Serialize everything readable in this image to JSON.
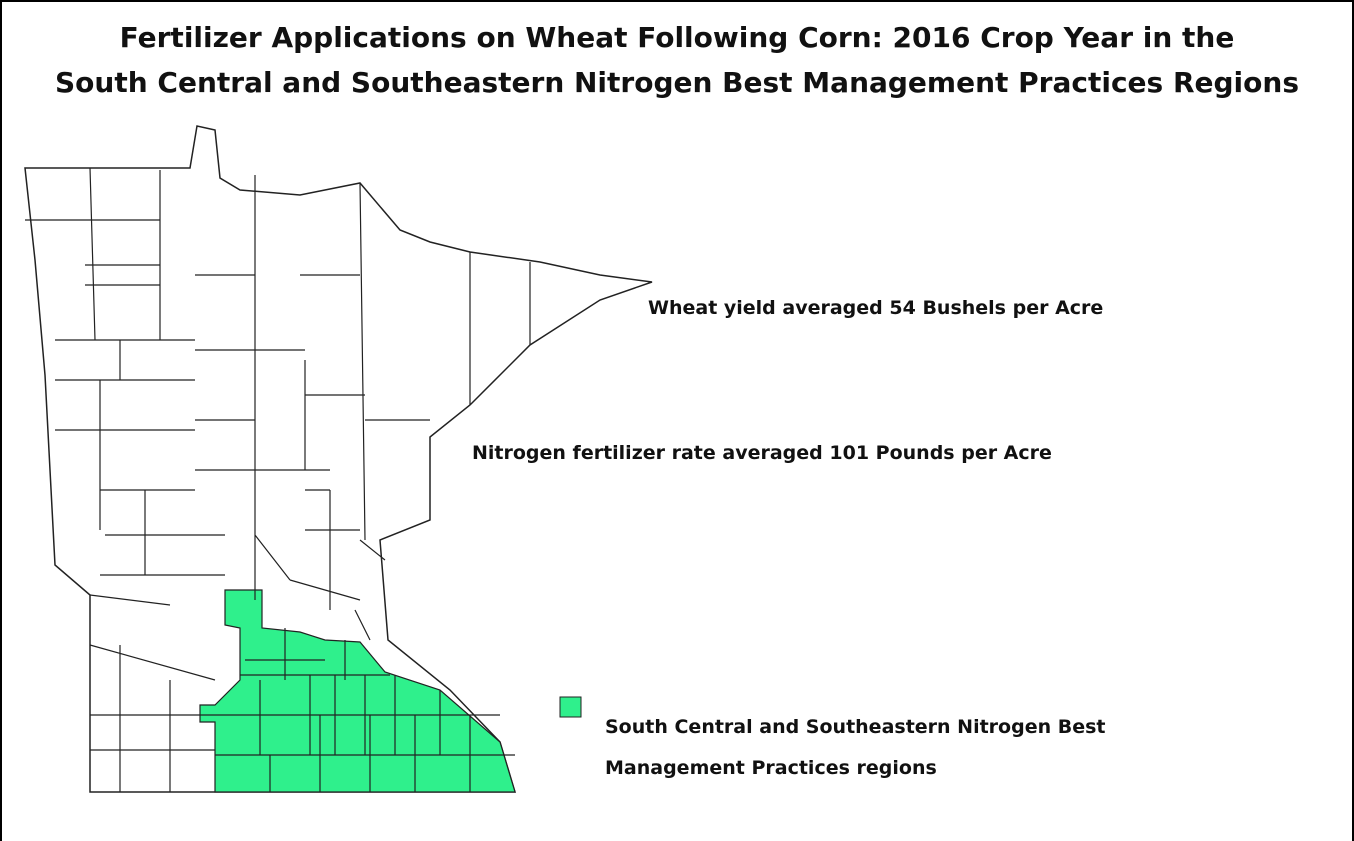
{
  "title_lines": [
    "Fertilizer Applications on Wheat Following Corn: 2016 Crop Year in the",
    "South Central and Southeastern Nitrogen Best Management Practices Regions"
  ],
  "annotations": [
    "Wheat yield averaged 54 Bushels per Acre",
    "Nitrogen fertilizer rate averaged 101 Pounds per Acre"
  ],
  "legend": {
    "color": "#2ff08c",
    "lines": [
      "South Central and Southeastern Nitrogen Best",
      "Management Practices regions"
    ]
  }
}
